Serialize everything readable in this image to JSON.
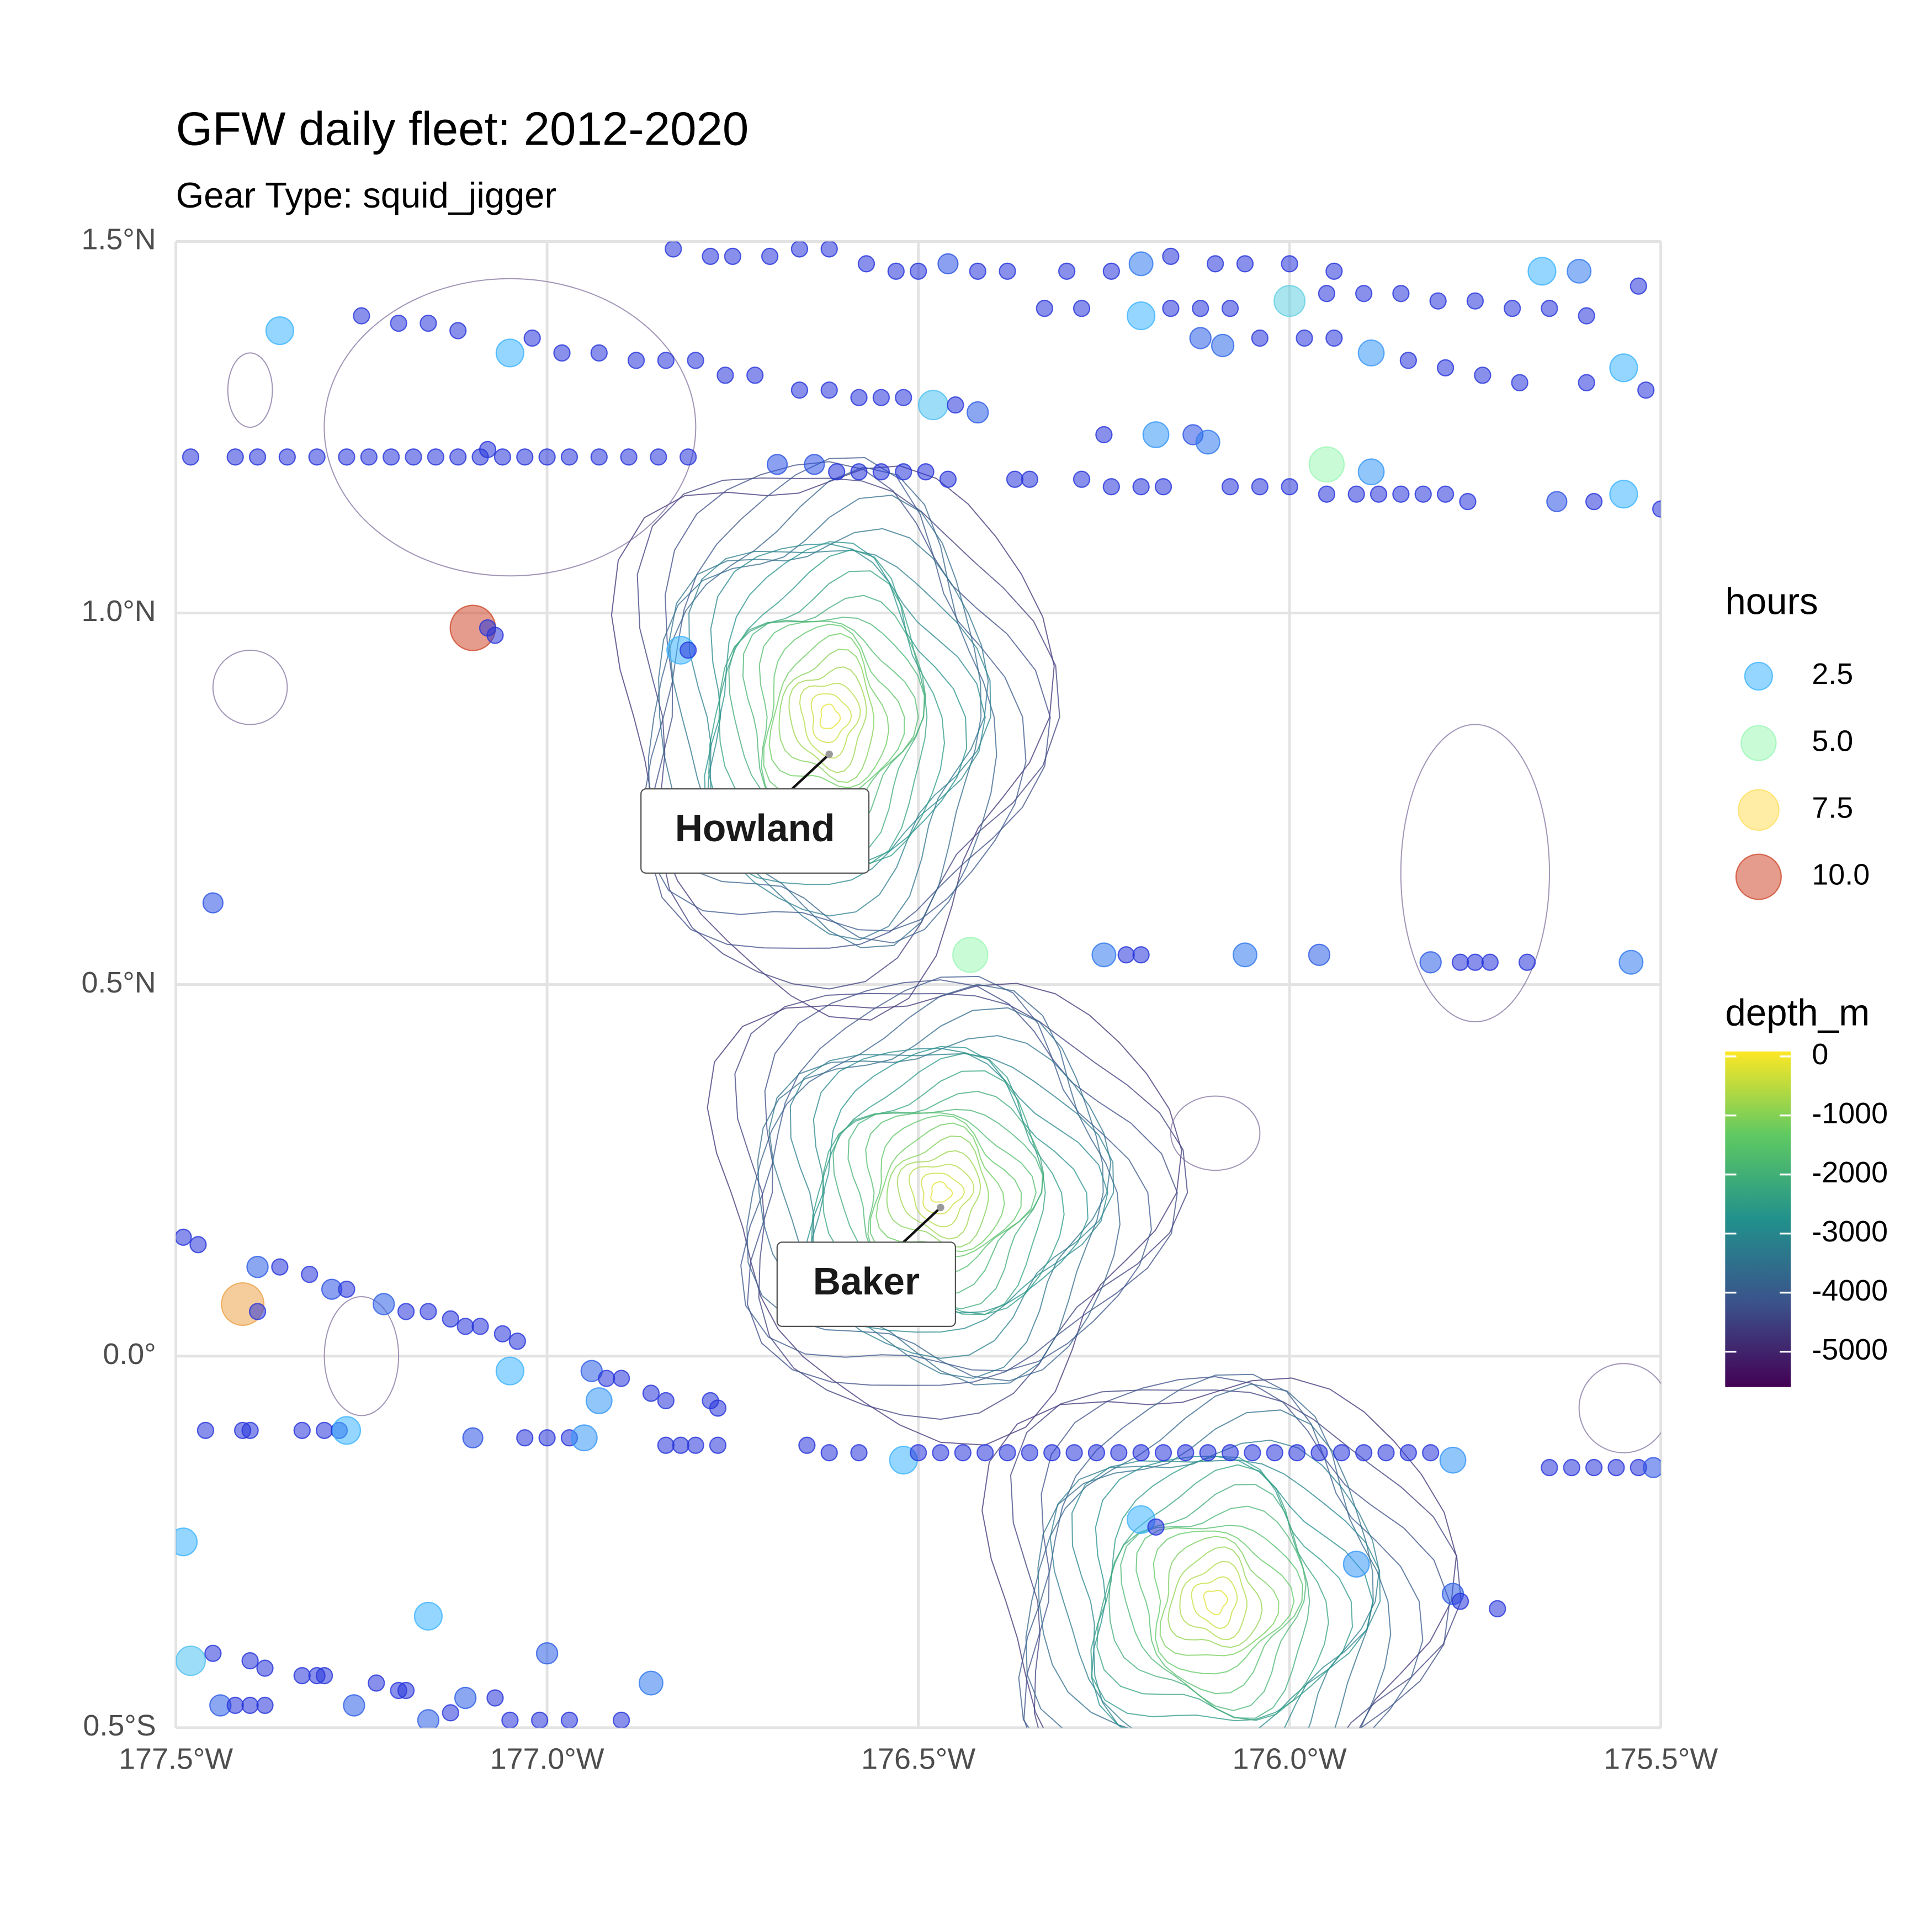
{
  "chart_data": {
    "type": "scatter",
    "title": "GFW daily fleet: 2012-2020",
    "subtitle": "Gear Type: squid_jigger",
    "xlim": [
      -177.5,
      -175.5
    ],
    "ylim": [
      -0.5,
      1.5
    ],
    "xticks": [
      {
        "value": -177.5,
        "label": "177.5°W"
      },
      {
        "value": -177,
        "label": "177.0°W"
      },
      {
        "value": -176.5,
        "label": "176.5°W"
      },
      {
        "value": -176,
        "label": "176.0°W"
      },
      {
        "value": -175.5,
        "label": "175.5°W"
      }
    ],
    "yticks": [
      {
        "value": -0.5,
        "label": "0.5°S"
      },
      {
        "value": 0,
        "label": "0.0°"
      },
      {
        "value": 0.5,
        "label": "0.5°N"
      },
      {
        "value": 1,
        "label": "1.0°N"
      },
      {
        "value": 1.5,
        "label": "1.5°N"
      }
    ],
    "grid": true,
    "hours_scale": {
      "title": "hours",
      "low_color": "#2424d6",
      "breaks": [
        2.5,
        {
          "value": 5,
          "label": "5.0"
        },
        7.5,
        {
          "value": 10,
          "label": "10.0"
        }
      ],
      "colors": [
        "#3cb4ff",
        "#9cf7b6",
        "#ffdf5c",
        "#cf4a2e"
      ]
    },
    "depth_scale": {
      "title": "depth_m",
      "limits": [
        -5600,
        0
      ],
      "ticks": [
        0,
        -1000,
        -2000,
        -3000,
        -4000,
        -5000
      ],
      "colors": [
        "#440154",
        "#3b528b",
        "#21918c",
        "#5ec962",
        "#fde725"
      ]
    },
    "annotations": [
      {
        "text": "Howland",
        "x": -176.62,
        "y": 0.81
      },
      {
        "text": "Baker",
        "x": -176.47,
        "y": 0.2
      }
    ],
    "points": [
      [
        -177.48,
        1.21,
        0.3
      ],
      [
        -177.42,
        1.21,
        0.3
      ],
      [
        -177.39,
        1.21,
        0.3
      ],
      [
        -177.35,
        1.21,
        0.3
      ],
      [
        -177.31,
        1.21,
        0.3
      ],
      [
        -177.27,
        1.21,
        0.3
      ],
      [
        -177.24,
        1.21,
        0.3
      ],
      [
        -177.21,
        1.21,
        0.3
      ],
      [
        -177.18,
        1.21,
        0.3
      ],
      [
        -177.15,
        1.21,
        0.3
      ],
      [
        -177.12,
        1.21,
        0.3
      ],
      [
        -177.09,
        1.21,
        0.3
      ],
      [
        -177.08,
        1.22,
        0.3
      ],
      [
        -177.06,
        1.21,
        0.3
      ],
      [
        -177.03,
        1.21,
        0.3
      ],
      [
        -177.0,
        1.21,
        0.3
      ],
      [
        -176.97,
        1.21,
        0.3
      ],
      [
        -176.93,
        1.21,
        0.3
      ],
      [
        -176.89,
        1.21,
        0.3
      ],
      [
        -176.85,
        1.21,
        0.3
      ],
      [
        -176.81,
        1.21,
        0.3
      ],
      [
        -176.69,
        1.2,
        0.8
      ],
      [
        -176.64,
        1.2,
        0.8
      ],
      [
        -176.61,
        1.19,
        0.3
      ],
      [
        -176.58,
        1.19,
        0.3
      ],
      [
        -176.55,
        1.19,
        0.3
      ],
      [
        -176.52,
        1.19,
        0.3
      ],
      [
        -176.49,
        1.19,
        0.3
      ],
      [
        -176.46,
        1.18,
        0.3
      ],
      [
        -176.37,
        1.18,
        0.3
      ],
      [
        -176.35,
        1.18,
        0.3
      ],
      [
        -176.28,
        1.18,
        0.3
      ],
      [
        -176.24,
        1.17,
        0.3
      ],
      [
        -176.2,
        1.17,
        0.3
      ],
      [
        -176.17,
        1.17,
        0.3
      ],
      [
        -176.08,
        1.17,
        0.3
      ],
      [
        -176.04,
        1.17,
        0.3
      ],
      [
        -176.0,
        1.17,
        0.3
      ],
      [
        -175.95,
        1.16,
        0.3
      ],
      [
        -175.91,
        1.16,
        0.3
      ],
      [
        -175.88,
        1.16,
        0.3
      ],
      [
        -175.85,
        1.16,
        0.3
      ],
      [
        -175.82,
        1.16,
        0.3
      ],
      [
        -175.79,
        1.16,
        0.3
      ],
      [
        -175.76,
        1.15,
        0.3
      ],
      [
        -175.64,
        1.15,
        0.8
      ],
      [
        -175.59,
        1.15,
        0.3
      ],
      [
        -175.55,
        1.16,
        2.5
      ],
      [
        -175.5,
        1.14,
        0.3
      ],
      [
        -177.36,
        1.38,
        2.5
      ],
      [
        -177.25,
        1.4,
        0.3
      ],
      [
        -177.2,
        1.39,
        0.3
      ],
      [
        -177.16,
        1.39,
        0.3
      ],
      [
        -177.12,
        1.38,
        0.3
      ],
      [
        -177.05,
        1.35,
        2.5
      ],
      [
        -177.02,
        1.37,
        0.3
      ],
      [
        -176.98,
        1.35,
        0.3
      ],
      [
        -176.93,
        1.35,
        0.3
      ],
      [
        -176.88,
        1.34,
        0.3
      ],
      [
        -176.84,
        1.34,
        0.3
      ],
      [
        -176.8,
        1.34,
        0.3
      ],
      [
        -176.76,
        1.32,
        0.3
      ],
      [
        -176.72,
        1.32,
        0.3
      ],
      [
        -176.66,
        1.3,
        0.3
      ],
      [
        -176.62,
        1.3,
        0.3
      ],
      [
        -176.58,
        1.29,
        0.3
      ],
      [
        -176.55,
        1.29,
        0.3
      ],
      [
        -176.52,
        1.29,
        0.3
      ],
      [
        -176.48,
        1.28,
        3
      ],
      [
        -176.45,
        1.28,
        0.3
      ],
      [
        -176.42,
        1.27,
        1
      ],
      [
        -176.83,
        1.49,
        0.3
      ],
      [
        -176.78,
        1.48,
        0.3
      ],
      [
        -176.75,
        1.48,
        0.3
      ],
      [
        -176.7,
        1.48,
        0.3
      ],
      [
        -176.66,
        1.49,
        0.3
      ],
      [
        -176.62,
        1.49,
        0.3
      ],
      [
        -176.57,
        1.47,
        0.3
      ],
      [
        -176.53,
        1.46,
        0.3
      ],
      [
        -176.5,
        1.46,
        0.3
      ],
      [
        -176.46,
        1.47,
        0.8
      ],
      [
        -176.42,
        1.46,
        0.3
      ],
      [
        -176.38,
        1.46,
        0.3
      ],
      [
        -176.3,
        1.46,
        0.3
      ],
      [
        -176.24,
        1.46,
        0.3
      ],
      [
        -176.2,
        1.47,
        1.5
      ],
      [
        -176.16,
        1.48,
        0.3
      ],
      [
        -176.1,
        1.47,
        0.3
      ],
      [
        -176.06,
        1.47,
        0.3
      ],
      [
        -176.0,
        1.47,
        0.3
      ],
      [
        -175.94,
        1.46,
        0.3
      ],
      [
        -175.66,
        1.46,
        2.5
      ],
      [
        -175.61,
        1.46,
        1.5
      ],
      [
        -176.33,
        1.41,
        0.3
      ],
      [
        -176.28,
        1.41,
        0.3
      ],
      [
        -176.2,
        1.4,
        2.5
      ],
      [
        -176.16,
        1.41,
        0.3
      ],
      [
        -176.12,
        1.41,
        0.3
      ],
      [
        -176.08,
        1.41,
        0.3
      ],
      [
        -176.0,
        1.42,
        3.5
      ],
      [
        -175.95,
        1.43,
        0.3
      ],
      [
        -175.9,
        1.43,
        0.3
      ],
      [
        -175.85,
        1.43,
        0.3
      ],
      [
        -175.8,
        1.42,
        0.3
      ],
      [
        -175.75,
        1.42,
        0.3
      ],
      [
        -175.7,
        1.41,
        0.3
      ],
      [
        -175.65,
        1.41,
        0.3
      ],
      [
        -175.6,
        1.4,
        0.3
      ],
      [
        -175.53,
        1.44,
        0.3
      ],
      [
        -176.12,
        1.37,
        1
      ],
      [
        -176.09,
        1.36,
        1.2
      ],
      [
        -176.04,
        1.37,
        0.3
      ],
      [
        -175.98,
        1.37,
        0.3
      ],
      [
        -175.94,
        1.37,
        0.3
      ],
      [
        -175.89,
        1.35,
        2
      ],
      [
        -175.84,
        1.34,
        0.3
      ],
      [
        -175.79,
        1.33,
        0.3
      ],
      [
        -175.74,
        1.32,
        0.3
      ],
      [
        -175.69,
        1.31,
        0.3
      ],
      [
        -175.6,
        1.31,
        0.3
      ],
      [
        -175.55,
        1.33,
        2.5
      ],
      [
        -175.52,
        1.3,
        0.3
      ],
      [
        -176.25,
        1.24,
        0.3
      ],
      [
        -176.18,
        1.24,
        2
      ],
      [
        -176.13,
        1.24,
        0.8
      ],
      [
        -176.11,
        1.23,
        1.5
      ],
      [
        -175.95,
        1.2,
        5
      ],
      [
        -175.89,
        1.19,
        2
      ],
      [
        -177.1,
        0.98,
        10
      ],
      [
        -177.08,
        0.98,
        0.3
      ],
      [
        -177.07,
        0.97,
        0.3
      ],
      [
        -176.82,
        0.95,
        2.5
      ],
      [
        -176.81,
        0.95,
        0.3
      ],
      [
        -177.45,
        0.61,
        0.8
      ],
      [
        -176.43,
        0.54,
        5
      ],
      [
        -176.25,
        0.54,
        1.5
      ],
      [
        -176.22,
        0.54,
        0.3
      ],
      [
        -176.2,
        0.54,
        0.3
      ],
      [
        -176.06,
        0.54,
        1.5
      ],
      [
        -175.96,
        0.54,
        1
      ],
      [
        -175.81,
        0.53,
        1
      ],
      [
        -175.77,
        0.53,
        0.3
      ],
      [
        -175.75,
        0.53,
        0.3
      ],
      [
        -175.73,
        0.53,
        0.3
      ],
      [
        -175.68,
        0.53,
        0.3
      ],
      [
        -175.54,
        0.53,
        1.5
      ],
      [
        -177.49,
        0.16,
        0.3
      ],
      [
        -177.47,
        0.15,
        0.3
      ],
      [
        -177.39,
        0.12,
        1
      ],
      [
        -177.36,
        0.12,
        0.3
      ],
      [
        -177.32,
        0.11,
        0.3
      ],
      [
        -177.29,
        0.09,
        0.8
      ],
      [
        -177.27,
        0.09,
        0.3
      ],
      [
        -177.22,
        0.07,
        1
      ],
      [
        -177.19,
        0.06,
        0.3
      ],
      [
        -177.16,
        0.06,
        0.3
      ],
      [
        -177.13,
        0.05,
        0.3
      ],
      [
        -177.11,
        0.04,
        0.3
      ],
      [
        -177.09,
        0.04,
        0.3
      ],
      [
        -177.06,
        0.03,
        0.3
      ],
      [
        -177.04,
        0.02,
        0.3
      ],
      [
        -177.41,
        0.07,
        8.5
      ],
      [
        -177.39,
        0.06,
        0.3
      ],
      [
        -177.05,
        -0.02,
        2.5
      ],
      [
        -176.94,
        -0.02,
        1
      ],
      [
        -176.92,
        -0.03,
        0.3
      ],
      [
        -176.9,
        -0.03,
        0.3
      ],
      [
        -176.93,
        -0.06,
        2
      ],
      [
        -176.86,
        -0.05,
        0.3
      ],
      [
        -176.84,
        -0.06,
        0.3
      ],
      [
        -176.78,
        -0.06,
        0.3
      ],
      [
        -176.77,
        -0.07,
        0.3
      ],
      [
        -177.46,
        -0.1,
        0.3
      ],
      [
        -177.41,
        -0.1,
        0.3
      ],
      [
        -177.4,
        -0.1,
        0.3
      ],
      [
        -177.33,
        -0.1,
        0.3
      ],
      [
        -177.3,
        -0.1,
        0.3
      ],
      [
        -177.28,
        -0.1,
        0.3
      ],
      [
        -177.27,
        -0.1,
        2.5
      ],
      [
        -177.1,
        -0.11,
        0.8
      ],
      [
        -177.03,
        -0.11,
        0.3
      ],
      [
        -177.0,
        -0.11,
        0.3
      ],
      [
        -176.97,
        -0.11,
        0.3
      ],
      [
        -176.95,
        -0.11,
        2
      ],
      [
        -176.84,
        -0.12,
        0.3
      ],
      [
        -176.82,
        -0.12,
        0.3
      ],
      [
        -176.8,
        -0.12,
        0.3
      ],
      [
        -176.77,
        -0.12,
        0.3
      ],
      [
        -176.65,
        -0.12,
        0.3
      ],
      [
        -176.62,
        -0.13,
        0.3
      ],
      [
        -176.58,
        -0.13,
        0.3
      ],
      [
        -176.52,
        -0.14,
        2.5
      ],
      [
        -176.5,
        -0.13,
        0.3
      ],
      [
        -176.47,
        -0.13,
        0.3
      ],
      [
        -176.44,
        -0.13,
        0.3
      ],
      [
        -176.41,
        -0.13,
        0.3
      ],
      [
        -176.38,
        -0.13,
        0.3
      ],
      [
        -176.35,
        -0.13,
        0.3
      ],
      [
        -176.32,
        -0.13,
        0.3
      ],
      [
        -176.29,
        -0.13,
        0.3
      ],
      [
        -176.26,
        -0.13,
        0.3
      ],
      [
        -176.23,
        -0.13,
        0.3
      ],
      [
        -176.2,
        -0.13,
        0.3
      ],
      [
        -176.17,
        -0.13,
        0.3
      ],
      [
        -176.14,
        -0.13,
        0.3
      ],
      [
        -176.11,
        -0.13,
        0.3
      ],
      [
        -176.08,
        -0.13,
        0.3
      ],
      [
        -176.05,
        -0.13,
        0.3
      ],
      [
        -176.02,
        -0.13,
        0.3
      ],
      [
        -175.99,
        -0.13,
        0.3
      ],
      [
        -175.96,
        -0.13,
        0.3
      ],
      [
        -175.93,
        -0.13,
        0.3
      ],
      [
        -175.9,
        -0.13,
        0.3
      ],
      [
        -175.87,
        -0.13,
        0.3
      ],
      [
        -175.84,
        -0.13,
        0.3
      ],
      [
        -175.81,
        -0.13,
        0.3
      ],
      [
        -175.78,
        -0.14,
        2
      ],
      [
        -175.65,
        -0.15,
        0.3
      ],
      [
        -175.62,
        -0.15,
        0.3
      ],
      [
        -175.59,
        -0.15,
        0.3
      ],
      [
        -175.56,
        -0.15,
        0.3
      ],
      [
        -175.53,
        -0.15,
        0.3
      ],
      [
        -175.51,
        -0.15,
        0.8
      ],
      [
        -177.49,
        -0.25,
        2.5
      ],
      [
        -177.16,
        -0.35,
        2.5
      ],
      [
        -176.2,
        -0.22,
        2.5
      ],
      [
        -176.18,
        -0.23,
        0.3
      ],
      [
        -175.91,
        -0.28,
        2
      ],
      [
        -175.78,
        -0.32,
        1
      ],
      [
        -175.77,
        -0.33,
        0.3
      ],
      [
        -175.72,
        -0.34,
        0.3
      ],
      [
        -177.48,
        -0.41,
        3
      ],
      [
        -177.45,
        -0.4,
        0.3
      ],
      [
        -177.4,
        -0.41,
        0.3
      ],
      [
        -177.38,
        -0.42,
        0.3
      ],
      [
        -177.0,
        -0.4,
        1
      ],
      [
        -177.33,
        -0.43,
        0.3
      ],
      [
        -177.31,
        -0.43,
        0.3
      ],
      [
        -177.3,
        -0.43,
        0.3
      ],
      [
        -177.23,
        -0.44,
        0.3
      ],
      [
        -177.2,
        -0.45,
        0.3
      ],
      [
        -177.19,
        -0.45,
        0.3
      ],
      [
        -177.11,
        -0.46,
        1
      ],
      [
        -177.07,
        -0.46,
        0.3
      ],
      [
        -176.86,
        -0.44,
        1.5
      ],
      [
        -177.44,
        -0.47,
        1
      ],
      [
        -177.42,
        -0.47,
        0.3
      ],
      [
        -177.4,
        -0.47,
        0.3
      ],
      [
        -177.38,
        -0.47,
        0.3
      ],
      [
        -177.26,
        -0.47,
        1
      ],
      [
        -177.16,
        -0.49,
        1
      ],
      [
        -177.13,
        -0.48,
        0.3
      ],
      [
        -177.05,
        -0.49,
        0.3
      ],
      [
        -177.01,
        -0.49,
        0.3
      ],
      [
        -176.97,
        -0.49,
        0.3
      ],
      [
        -176.9,
        -0.49,
        0.3
      ]
    ]
  }
}
